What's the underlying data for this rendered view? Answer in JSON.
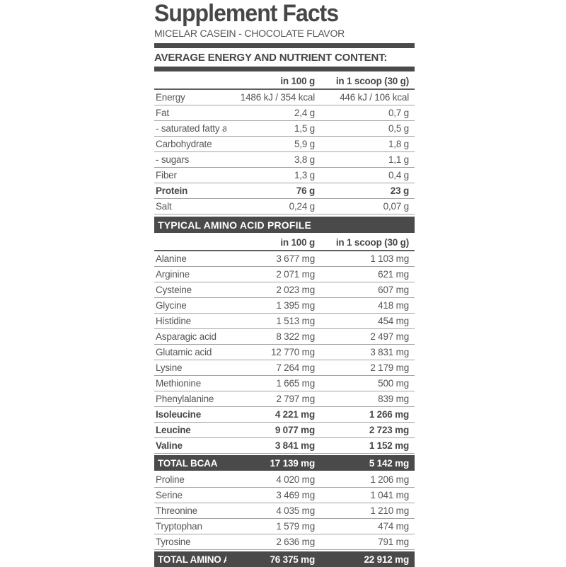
{
  "title": "Supplement Facts",
  "subtitle": "MICELAR CASEIN - CHOCOLATE FLAVOR",
  "colors": {
    "bar_dark": "#4a4a4b",
    "body_text": "#55565a",
    "highlight_text": "#ffffff",
    "row_line": "#a3a3a5"
  },
  "section1": {
    "header": "AVERAGE ENERGY AND NUTRIENT CONTENT:",
    "col_headers": [
      "in 100 g",
      "in 1 scoop (30 g)"
    ],
    "rows": [
      {
        "label": "Energy",
        "per100": "1486 kJ / 354 kcal",
        "perScoop": "446 kJ / 106 kcal"
      },
      {
        "label": "Fat",
        "per100": "2,4 g",
        "perScoop": "0,7 g"
      },
      {
        "label": "- saturated fatty acids",
        "per100": "1,5 g",
        "perScoop": "0,5 g"
      },
      {
        "label": "Carbohydrate",
        "per100": "5,9 g",
        "perScoop": "1,8 g"
      },
      {
        "label": "- sugars",
        "per100": "3,8 g",
        "perScoop": "1,1 g"
      },
      {
        "label": "Fiber",
        "per100": "1,3 g",
        "perScoop": "0,4 g"
      },
      {
        "label": "Protein",
        "per100": "76 g",
        "perScoop": "23 g"
      },
      {
        "label": "Salt",
        "per100": "0,24 g",
        "perScoop": "0,07 g"
      }
    ]
  },
  "section2": {
    "header": "TYPICAL AMINO ACID PROFILE",
    "col_headers": [
      "in 100 g",
      "in 1 scoop (30 g)"
    ],
    "rows": [
      {
        "label": "Alanine",
        "per100": "3 677 mg",
        "perScoop": "1 103 mg"
      },
      {
        "label": "Arginine",
        "per100": "2 071 mg",
        "perScoop": "621 mg"
      },
      {
        "label": "Cysteine",
        "per100": "2 023 mg",
        "perScoop": "607 mg"
      },
      {
        "label": "Glycine",
        "per100": "1 395 mg",
        "perScoop": "418 mg"
      },
      {
        "label": "Histidine",
        "per100": "1 513 mg",
        "perScoop": "454 mg"
      },
      {
        "label": "Asparagic acid",
        "per100": "8 322 mg",
        "perScoop": "2 497 mg"
      },
      {
        "label": "Glutamic acid",
        "per100": "12 770 mg",
        "perScoop": "3 831 mg"
      },
      {
        "label": "Lysine",
        "per100": "7 264 mg",
        "perScoop": "2 179 mg"
      },
      {
        "label": "Methionine",
        "per100": "1 665 mg",
        "perScoop": "500 mg"
      },
      {
        "label": "Phenylalanine",
        "per100": "2 797 mg",
        "perScoop": "839 mg"
      },
      {
        "label": "Isoleucine",
        "per100": "4 221 mg",
        "perScoop": "1 266 mg"
      },
      {
        "label": "Leucine",
        "per100": "9 077 mg",
        "perScoop": "2 723 mg"
      },
      {
        "label": "Valine",
        "per100": "3 841 mg",
        "perScoop": "1 152 mg"
      },
      {
        "label": "TOTAL BCAA",
        "per100": "17 139 mg",
        "perScoop": "5 142 mg"
      },
      {
        "label": "Proline",
        "per100": "4 020 mg",
        "perScoop": "1 206 mg"
      },
      {
        "label": "Serine",
        "per100": "3 469 mg",
        "perScoop": "1 041 mg"
      },
      {
        "label": "Threonine",
        "per100": "4 035 mg",
        "perScoop": "1 210 mg"
      },
      {
        "label": "Tryptophan",
        "per100": "1 579 mg",
        "perScoop": "474 mg"
      },
      {
        "label": "Tyrosine",
        "per100": "2 636 mg",
        "perScoop": "791 mg"
      },
      {
        "label": "TOTAL AMINO ACID",
        "per100": "76 375 mg",
        "perScoop": "22 912 mg"
      }
    ]
  }
}
